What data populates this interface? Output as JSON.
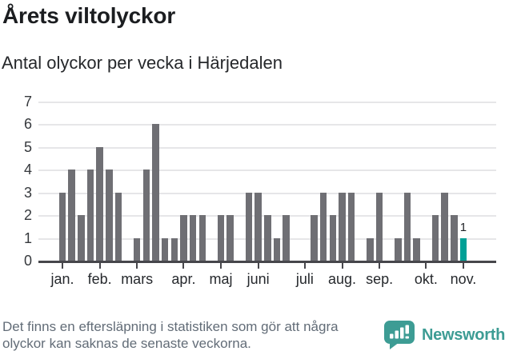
{
  "header": {
    "title": "Årets viltolyckor",
    "subtitle": "Antal olyckor per vecka i Härjedalen"
  },
  "chart_data": {
    "type": "bar",
    "title": "Årets viltolyckor",
    "subtitle": "Antal olyckor per vecka i Härjedalen",
    "xlabel": "",
    "ylabel": "",
    "ylim": [
      0,
      7
    ],
    "y_ticks": [
      0,
      1,
      2,
      3,
      4,
      5,
      6,
      7
    ],
    "grid": "horizontal",
    "categories_unit": "vecka",
    "values": [
      3,
      4,
      2,
      4,
      5,
      4,
      3,
      0,
      1,
      4,
      6,
      1,
      1,
      2,
      2,
      2,
      0,
      2,
      2,
      0,
      3,
      3,
      2,
      1,
      2,
      0,
      0,
      2,
      3,
      2,
      3,
      3,
      0,
      1,
      3,
      0,
      1,
      3,
      1,
      0,
      2,
      3,
      2,
      1
    ],
    "x_ticks": [
      {
        "label": "jan.",
        "week": 1
      },
      {
        "label": "feb.",
        "week": 5
      },
      {
        "label": "mars",
        "week": 9
      },
      {
        "label": "apr.",
        "week": 14
      },
      {
        "label": "maj",
        "week": 18
      },
      {
        "label": "juni",
        "week": 22
      },
      {
        "label": "juli",
        "week": 27
      },
      {
        "label": "aug.",
        "week": 31
      },
      {
        "label": "sep.",
        "week": 35
      },
      {
        "label": "okt.",
        "week": 40
      },
      {
        "label": "nov.",
        "week": 44
      }
    ],
    "bar_color": "#6f6f74",
    "highlight_color": "#00a096",
    "highlight_last": true,
    "last_value_label": "1"
  },
  "footer": {
    "note": "Det finns en eftersläpning i statistiken som gör att några olyckor kan saknas de senaste veckorna.",
    "brand": "Newsworthy",
    "brand_color": "#3d9c94"
  }
}
